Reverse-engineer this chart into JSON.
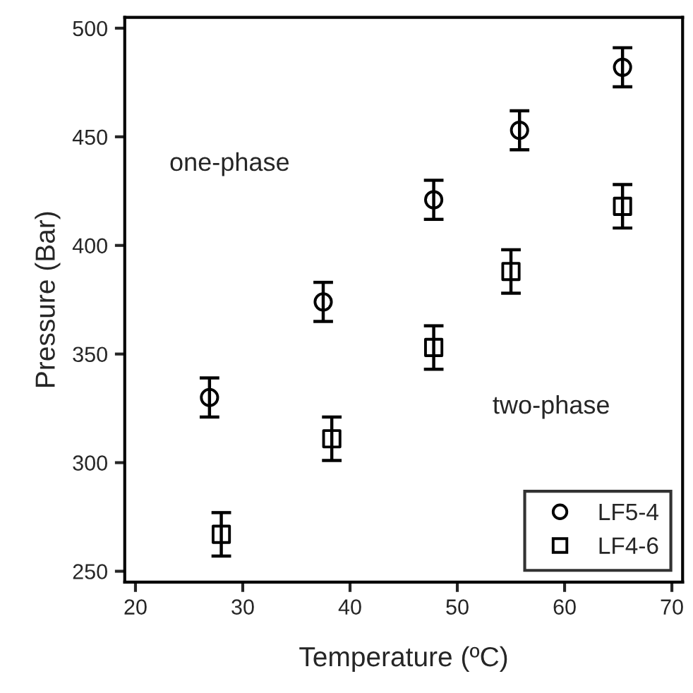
{
  "chart_data": {
    "type": "scatter",
    "xlabel": "Temperature (ºC)",
    "ylabel": "Pressure (Bar)",
    "xlim": [
      19,
      71
    ],
    "xticks": [
      20,
      30,
      40,
      50,
      60,
      70
    ],
    "ylim": [
      245,
      505
    ],
    "yticks": [
      250,
      300,
      350,
      400,
      450,
      500
    ],
    "grid": false,
    "legend": "bottom right",
    "series": [
      {
        "name": "LF5-4",
        "color": "#000000",
        "marker": "circle",
        "x": [
          26.9,
          37.5,
          47.8,
          55.8,
          65.4
        ],
        "values": [
          330,
          374,
          421,
          453,
          482
        ],
        "errors": [
          9,
          9,
          9,
          9,
          9
        ]
      },
      {
        "name": "LF4-6",
        "color": "#000000",
        "marker": "square",
        "x": [
          28.0,
          38.3,
          47.8,
          55.0,
          65.4
        ],
        "values": [
          267,
          311,
          353,
          388,
          418
        ],
        "errors": [
          10,
          10,
          10,
          10,
          10
        ]
      }
    ],
    "annotations": [
      "one-phase",
      "two-phase"
    ]
  }
}
